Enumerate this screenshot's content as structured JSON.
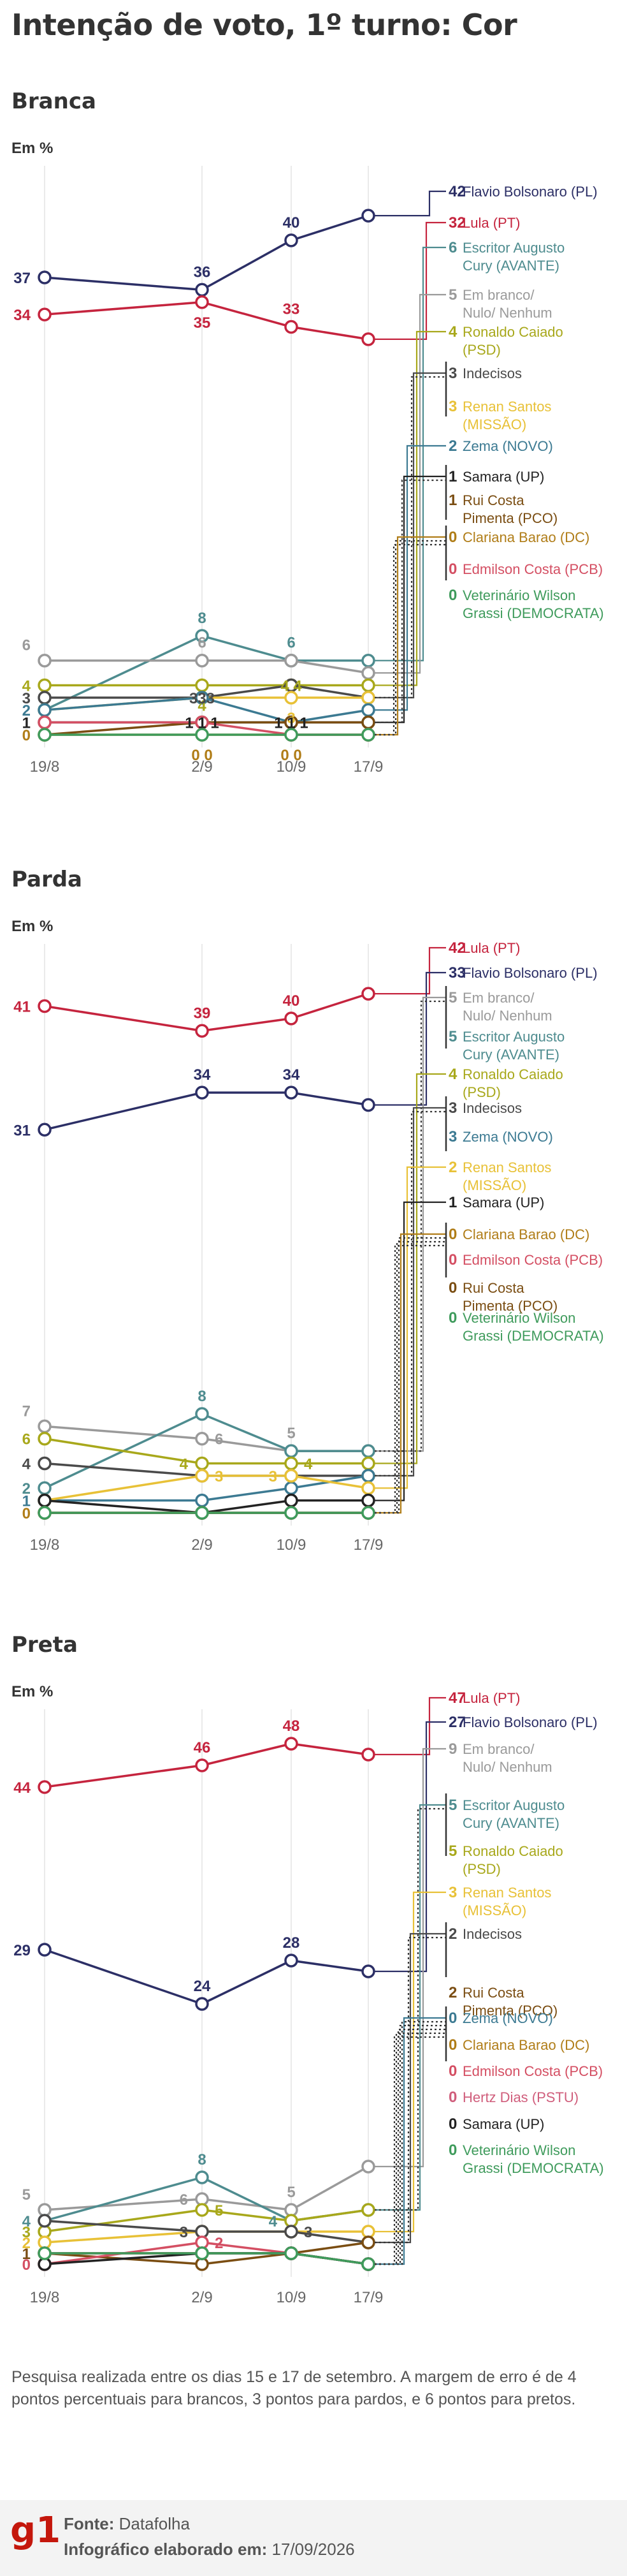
{
  "title": "Intenção de voto, 1º turno: Cor",
  "footer": {
    "note": "Pesquisa realizada entre os dias 15 e 17 de setembro. A margem de erro é de 4 pontos percentuais para brancos, 3 pontos para pardos, e 6 pontos para pretos.",
    "source_label": "Fonte:",
    "source_value": "Datafolha",
    "date_label": "Infográfico elaborado em:",
    "date_value": "17/09/2026",
    "logo": "g1"
  },
  "colors": {
    "Flavio Bolsonaro": "#2c2f66",
    "Lula": "#c5243e",
    "Escritor Augusto Cury": "#4e8c8f",
    "Em branco": "#9a9a9a",
    "Ronaldo Caiado": "#a8a81b",
    "Indecisos": "#4a4a4a",
    "Renan Santos": "#e8c137",
    "Zema": "#3c7a92",
    "Samara": "#222222",
    "Rui Costa Pimenta": "#7a4d12",
    "Clariana Barao": "#b07d18",
    "Edmilson Costa": "#d44f63",
    "Veterinário Wilson Grassi": "#3f9b5c",
    "Hertz Dias": "#d05e7c"
  },
  "chart_data": [
    {
      "type": "line",
      "title": "Branca",
      "ylabel": "Em %",
      "x": [
        "19/8",
        "2/9",
        "10/9",
        "17/9"
      ],
      "ylim": [
        0,
        45
      ],
      "series": [
        {
          "name": "Flavio Bolsonaro (PL)",
          "values": [
            37,
            36,
            40,
            42
          ]
        },
        {
          "name": "Lula (PT)",
          "values": [
            34,
            35,
            33,
            32
          ]
        },
        {
          "name": "Escritor Augusto Cury (AVANTE)",
          "values": [
            2,
            8,
            6,
            6
          ]
        },
        {
          "name": "Em branco/ Nulo/ Nenhum",
          "values": [
            6,
            6,
            6,
            5
          ]
        },
        {
          "name": "Ronaldo Caiado (PSD)",
          "values": [
            4,
            4,
            4,
            4
          ]
        },
        {
          "name": "Indecisos",
          "values": [
            3,
            3,
            4,
            3
          ]
        },
        {
          "name": "Renan Santos (MISSÃO)",
          "values": [
            2,
            3,
            3,
            3
          ]
        },
        {
          "name": "Zema (NOVO)",
          "values": [
            2,
            3,
            1,
            2
          ]
        },
        {
          "name": "Samara (UP)",
          "values": [
            1,
            1,
            1,
            1
          ]
        },
        {
          "name": "Rui Costa Pimenta (PCO)",
          "values": [
            0,
            1,
            1,
            1
          ]
        },
        {
          "name": "Clariana Barao (DC)",
          "values": [
            0,
            0,
            0,
            0
          ]
        },
        {
          "name": "Edmilson Costa (PCB)",
          "values": [
            1,
            1,
            0,
            0
          ]
        },
        {
          "name": "Veterinário Wilson Grassi (DEMOCRATA)",
          "values": [
            0,
            0,
            0,
            0
          ]
        }
      ],
      "point_labels": [
        {
          "text": "37",
          "s": 0,
          "i": 0,
          "pos": "left"
        },
        {
          "text": "36",
          "s": 0,
          "i": 1,
          "pos": "above"
        },
        {
          "text": "40",
          "s": 0,
          "i": 2,
          "pos": "above"
        },
        {
          "text": "34",
          "s": 1,
          "i": 0,
          "pos": "left"
        },
        {
          "text": "35",
          "s": 1,
          "i": 1,
          "pos": "below"
        },
        {
          "text": "33",
          "s": 1,
          "i": 2,
          "pos": "above"
        },
        {
          "text": "6",
          "s": 3,
          "i": 0,
          "pos": "leftabove"
        },
        {
          "text": "4",
          "s": 4,
          "i": 0,
          "pos": "left"
        },
        {
          "text": "3",
          "s": 5,
          "i": 0,
          "pos": "left"
        },
        {
          "text": "2",
          "s": 7,
          "i": 0,
          "pos": "left"
        },
        {
          "text": "1",
          "s": 8,
          "i": 0,
          "pos": "left"
        },
        {
          "text": "0",
          "s": 10,
          "i": 0,
          "pos": "left"
        },
        {
          "text": "8",
          "s": 2,
          "i": 1,
          "pos": "above"
        },
        {
          "text": "6",
          "s": 3,
          "i": 1,
          "pos": "above"
        },
        {
          "text": "4",
          "s": 4,
          "i": 1,
          "pos": "below"
        },
        {
          "text": "333",
          "s": 5,
          "i": 1,
          "pos": "center"
        },
        {
          "text": "1 1 1",
          "s": 8,
          "i": 1,
          "pos": "center"
        },
        {
          "text": "0 0",
          "s": 10,
          "i": 1,
          "pos": "below"
        },
        {
          "text": "6",
          "s": 2,
          "i": 2,
          "pos": "above"
        },
        {
          "text": "4 4",
          "s": 4,
          "i": 2,
          "pos": "center"
        },
        {
          "text": "3",
          "s": 6,
          "i": 2,
          "pos": "below"
        },
        {
          "text": "1 1 1",
          "s": 8,
          "i": 2,
          "pos": "center"
        },
        {
          "text": "0 0",
          "s": 10,
          "i": 2,
          "pos": "below"
        }
      ],
      "legend": [
        {
          "value": "42",
          "label": "Flavio Bolsonaro (PL)",
          "s": [
            0
          ]
        },
        {
          "value": "32",
          "label": "Lula (PT)",
          "s": [
            1
          ]
        },
        {
          "value": "6",
          "label": "Escritor Augusto Cury (AVANTE)",
          "s": [
            2
          ]
        },
        {
          "value": "5",
          "label": "Em branco/ Nulo/ Nenhum",
          "s": [
            3
          ]
        },
        {
          "value": "4",
          "label": "Ronaldo Caiado (PSD)",
          "s": [
            4
          ]
        },
        {
          "value": "3",
          "label": "Indecisos",
          "s": [
            5,
            6
          ]
        },
        {
          "value": "3",
          "label": "Renan Santos (MISSÃO)",
          "s": []
        },
        {
          "value": "2",
          "label": "Zema (NOVO)",
          "s": [
            7
          ]
        },
        {
          "value": "1",
          "label": "Samara (UP)",
          "s": [
            8,
            9
          ]
        },
        {
          "value": "1",
          "label": "Rui Costa Pimenta (PCO)",
          "s": []
        },
        {
          "value": "0",
          "label": "Clariana Barao (DC)",
          "s": [
            10,
            11,
            12
          ]
        },
        {
          "value": "0",
          "label": "Edmilson Costa (PCB)",
          "s": []
        },
        {
          "value": "0",
          "label": "Veterinário Wilson Grassi (DEMOCRATA)",
          "s": []
        }
      ]
    },
    {
      "type": "line",
      "title": "Parda",
      "ylabel": "Em %",
      "x": [
        "19/8",
        "2/9",
        "10/9",
        "17/9"
      ],
      "ylim": [
        0,
        45
      ],
      "series": [
        {
          "name": "Lula (PT)",
          "values": [
            41,
            39,
            40,
            42
          ]
        },
        {
          "name": "Flavio Bolsonaro (PL)",
          "values": [
            31,
            34,
            34,
            33
          ]
        },
        {
          "name": "Em branco/ Nulo/ Nenhum",
          "values": [
            7,
            6,
            5,
            5
          ]
        },
        {
          "name": "Escritor Augusto Cury (AVANTE)",
          "values": [
            2,
            8,
            5,
            5
          ]
        },
        {
          "name": "Ronaldo Caiado (PSD)",
          "values": [
            6,
            4,
            4,
            4
          ]
        },
        {
          "name": "Indecisos",
          "values": [
            4,
            3,
            3,
            3
          ]
        },
        {
          "name": "Zema (NOVO)",
          "values": [
            1,
            1,
            2,
            3
          ]
        },
        {
          "name": "Renan Santos (MISSÃO)",
          "values": [
            1,
            3,
            3,
            2
          ]
        },
        {
          "name": "Samara (UP)",
          "values": [
            1,
            0,
            1,
            1
          ]
        },
        {
          "name": "Clariana Barao (DC)",
          "values": [
            0,
            0,
            0,
            0
          ]
        },
        {
          "name": "Edmilson Costa (PCB)",
          "values": [
            0,
            0,
            0,
            0
          ]
        },
        {
          "name": "Rui Costa Pimenta (PCO)",
          "values": [
            0,
            0,
            0,
            0
          ]
        },
        {
          "name": "Veterinário Wilson Grassi (DEMOCRATA)",
          "values": [
            0,
            0,
            0,
            0
          ]
        }
      ],
      "point_labels": [
        {
          "text": "41",
          "s": 0,
          "i": 0,
          "pos": "left"
        },
        {
          "text": "39",
          "s": 0,
          "i": 1,
          "pos": "above"
        },
        {
          "text": "40",
          "s": 0,
          "i": 2,
          "pos": "above"
        },
        {
          "text": "31",
          "s": 1,
          "i": 0,
          "pos": "left"
        },
        {
          "text": "34",
          "s": 1,
          "i": 1,
          "pos": "above"
        },
        {
          "text": "34",
          "s": 1,
          "i": 2,
          "pos": "above"
        },
        {
          "text": "7",
          "s": 2,
          "i": 0,
          "pos": "leftabove"
        },
        {
          "text": "6",
          "s": 4,
          "i": 0,
          "pos": "left"
        },
        {
          "text": "4",
          "s": 5,
          "i": 0,
          "pos": "left"
        },
        {
          "text": "2",
          "s": 3,
          "i": 0,
          "pos": "left"
        },
        {
          "text": "1",
          "s": 6,
          "i": 0,
          "pos": "left"
        },
        {
          "text": "0",
          "s": 9,
          "i": 0,
          "pos": "left"
        },
        {
          "text": "8",
          "s": 3,
          "i": 1,
          "pos": "above"
        },
        {
          "text": "6",
          "s": 2,
          "i": 1,
          "pos": "right"
        },
        {
          "text": "4",
          "s": 4,
          "i": 1,
          "pos": "left"
        },
        {
          "text": "3",
          "s": 7,
          "i": 1,
          "pos": "right"
        },
        {
          "text": "5",
          "s": 2,
          "i": 2,
          "pos": "above"
        },
        {
          "text": "4",
          "s": 4,
          "i": 2,
          "pos": "right"
        },
        {
          "text": "3",
          "s": 7,
          "i": 2,
          "pos": "left"
        }
      ],
      "legend": [
        {
          "value": "42",
          "label": "Lula (PT)",
          "s": [
            0
          ]
        },
        {
          "value": "33",
          "label": "Flavio Bolsonaro (PL)",
          "s": [
            1
          ]
        },
        {
          "value": "5",
          "label": "Em branco/ Nulo/ Nenhum",
          "s": [
            2,
            3
          ]
        },
        {
          "value": "5",
          "label": "Escritor Augusto Cury (AVANTE)",
          "s": []
        },
        {
          "value": "4",
          "label": "Ronaldo Caiado (PSD)",
          "s": [
            4
          ]
        },
        {
          "value": "3",
          "label": "Indecisos",
          "s": [
            5,
            6
          ]
        },
        {
          "value": "3",
          "label": "Zema (NOVO)",
          "s": []
        },
        {
          "value": "2",
          "label": "Renan Santos (MISSÃO)",
          "s": [
            7
          ]
        },
        {
          "value": "1",
          "label": "Samara (UP)",
          "s": [
            8
          ]
        },
        {
          "value": "0",
          "label": "Clariana Barao (DC)",
          "s": [
            9,
            10,
            11,
            12
          ]
        },
        {
          "value": "0",
          "label": "Edmilson Costa (PCB)",
          "s": []
        },
        {
          "value": "0",
          "label": "Rui Costa Pimenta (PCO)",
          "s": []
        },
        {
          "value": "0",
          "label": "Veterinário Wilson Grassi (DEMOCRATA)",
          "s": []
        }
      ]
    },
    {
      "type": "line",
      "title": "Preta",
      "ylabel": "Em %",
      "x": [
        "19/8",
        "2/9",
        "10/9",
        "17/9"
      ],
      "ylim": [
        0,
        50
      ],
      "series": [
        {
          "name": "Lula (PT)",
          "values": [
            44,
            46,
            48,
            47
          ]
        },
        {
          "name": "Flavio Bolsonaro (PL)",
          "values": [
            29,
            24,
            28,
            27
          ]
        },
        {
          "name": "Em branco/ Nulo/ Nenhum",
          "values": [
            5,
            6,
            5,
            9
          ]
        },
        {
          "name": "Escritor Augusto Cury (AVANTE)",
          "values": [
            4,
            8,
            4,
            5
          ]
        },
        {
          "name": "Ronaldo Caiado (PSD)",
          "values": [
            3,
            5,
            4,
            5
          ]
        },
        {
          "name": "Renan Santos (MISSÃO)",
          "values": [
            2,
            3,
            3,
            3
          ]
        },
        {
          "name": "Indecisos",
          "values": [
            4,
            3,
            3,
            2
          ]
        },
        {
          "name": "Rui Costa Pimenta (PCO)",
          "values": [
            1,
            0,
            1,
            2
          ]
        },
        {
          "name": "Zema (NOVO)",
          "values": [
            1,
            1,
            1,
            0
          ]
        },
        {
          "name": "Clariana Barao (DC)",
          "values": [
            1,
            1,
            1,
            0
          ]
        },
        {
          "name": "Edmilson Costa (PCB)",
          "values": [
            0,
            2,
            1,
            0
          ]
        },
        {
          "name": "Hertz Dias (PSTU)",
          "values": [
            1,
            1,
            1,
            0
          ]
        },
        {
          "name": "Samara (UP)",
          "values": [
            0,
            1,
            1,
            0
          ]
        },
        {
          "name": "Veterinário Wilson Grassi (DEMOCRATA)",
          "values": [
            1,
            1,
            1,
            0
          ]
        }
      ],
      "point_labels": [
        {
          "text": "44",
          "s": 0,
          "i": 0,
          "pos": "left"
        },
        {
          "text": "46",
          "s": 0,
          "i": 1,
          "pos": "above"
        },
        {
          "text": "48",
          "s": 0,
          "i": 2,
          "pos": "above"
        },
        {
          "text": "29",
          "s": 1,
          "i": 0,
          "pos": "left"
        },
        {
          "text": "24",
          "s": 1,
          "i": 1,
          "pos": "above"
        },
        {
          "text": "28",
          "s": 1,
          "i": 2,
          "pos": "above"
        },
        {
          "text": "5",
          "s": 2,
          "i": 0,
          "pos": "leftabove"
        },
        {
          "text": "4",
          "s": 3,
          "i": 0,
          "pos": "left"
        },
        {
          "text": "3",
          "s": 4,
          "i": 0,
          "pos": "left"
        },
        {
          "text": "2",
          "s": 5,
          "i": 0,
          "pos": "left"
        },
        {
          "text": "1",
          "s": 7,
          "i": 0,
          "pos": "left"
        },
        {
          "text": "0",
          "s": 10,
          "i": 0,
          "pos": "left"
        },
        {
          "text": "8",
          "s": 3,
          "i": 1,
          "pos": "above"
        },
        {
          "text": "6",
          "s": 2,
          "i": 1,
          "pos": "left"
        },
        {
          "text": "5",
          "s": 4,
          "i": 1,
          "pos": "right"
        },
        {
          "text": "3",
          "s": 6,
          "i": 1,
          "pos": "left"
        },
        {
          "text": "2",
          "s": 10,
          "i": 1,
          "pos": "right"
        },
        {
          "text": "5",
          "s": 2,
          "i": 2,
          "pos": "above"
        },
        {
          "text": "4",
          "s": 3,
          "i": 2,
          "pos": "left"
        },
        {
          "text": "3",
          "s": 6,
          "i": 2,
          "pos": "right"
        }
      ],
      "legend": [
        {
          "value": "47",
          "label": "Lula (PT)",
          "s": [
            0
          ]
        },
        {
          "value": "27",
          "label": "Flavio Bolsonaro (PL)",
          "s": [
            1
          ]
        },
        {
          "value": "9",
          "label": "Em branco/ Nulo/ Nenhum",
          "s": [
            2
          ]
        },
        {
          "value": "5",
          "label": "Escritor Augusto Cury (AVANTE)",
          "s": [
            3,
            4
          ]
        },
        {
          "value": "5",
          "label": "Ronaldo Caiado (PSD)",
          "s": []
        },
        {
          "value": "3",
          "label": "Renan Santos (MISSÃO)",
          "s": [
            5
          ]
        },
        {
          "value": "2",
          "label": "Indecisos",
          "s": [
            6,
            7
          ]
        },
        {
          "value": "2",
          "label": "Rui Costa Pimenta (PCO)",
          "s": []
        },
        {
          "value": "0",
          "label": "Zema (NOVO)",
          "s": [
            8,
            9,
            10,
            11,
            12,
            13
          ]
        },
        {
          "value": "0",
          "label": "Clariana Barao (DC)",
          "s": []
        },
        {
          "value": "0",
          "label": "Edmilson Costa (PCB)",
          "s": []
        },
        {
          "value": "0",
          "label": "Hertz Dias (PSTU)",
          "s": []
        },
        {
          "value": "0",
          "label": "Samara (UP)",
          "s": []
        },
        {
          "value": "0",
          "label": "Veterinário Wilson Grassi (DEMOCRATA)",
          "s": []
        }
      ]
    }
  ]
}
